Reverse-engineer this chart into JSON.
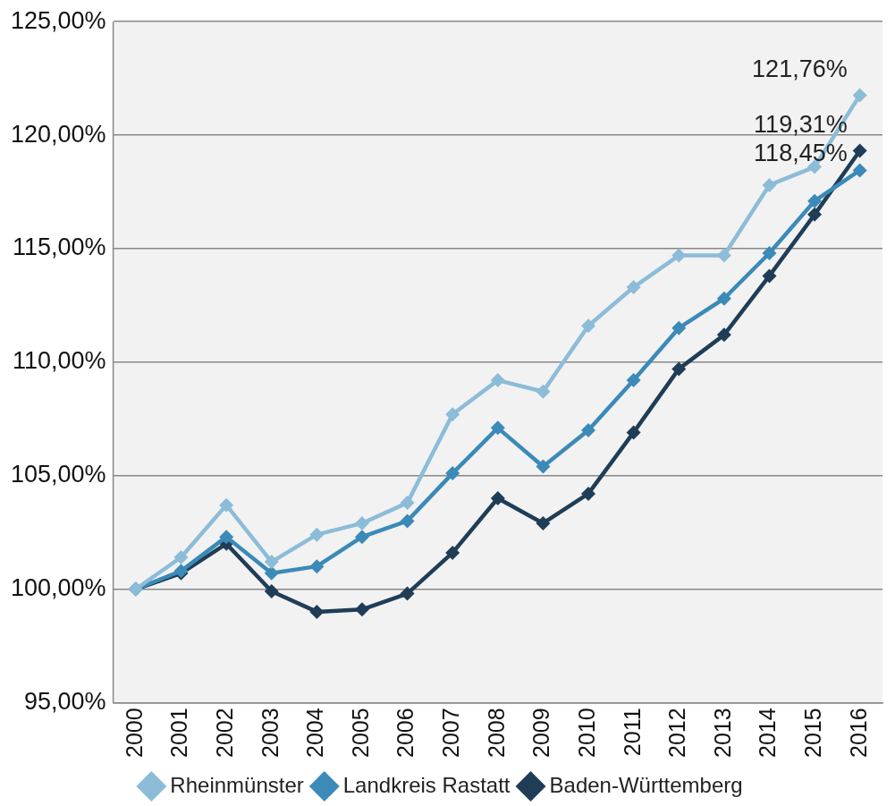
{
  "chart_data": {
    "type": "line",
    "categories": [
      "2000",
      "2001",
      "2002",
      "2003",
      "2004",
      "2005",
      "2006",
      "2007",
      "2008",
      "2009",
      "2010",
      "2011",
      "2012",
      "2013",
      "2014",
      "2015",
      "2016"
    ],
    "ylim": [
      95,
      125
    ],
    "yticks": [
      {
        "value": 95,
        "label": "95,00%"
      },
      {
        "value": 100,
        "label": "100,00%"
      },
      {
        "value": 105,
        "label": "105,00%"
      },
      {
        "value": 110,
        "label": "110,00%"
      },
      {
        "value": 115,
        "label": "115,00%"
      },
      {
        "value": 120,
        "label": "120,00%"
      },
      {
        "value": 125,
        "label": "125,00%"
      }
    ],
    "grid": "y",
    "legend": "bottom",
    "marker": "diamond",
    "line_style": "solid",
    "series": [
      {
        "name": "Rheinmünster",
        "color": "#8cbcd8",
        "values": [
          100,
          101.4,
          103.7,
          101.2,
          102.4,
          102.9,
          103.8,
          107.7,
          109.2,
          108.7,
          111.6,
          113.3,
          114.7,
          114.7,
          117.8,
          118.6,
          121.76
        ],
        "value_labels": [
          null,
          null,
          null,
          null,
          null,
          null,
          null,
          null,
          null,
          null,
          null,
          null,
          null,
          null,
          null,
          null,
          "121,76%"
        ]
      },
      {
        "name": "Landkreis Rastatt",
        "color": "#3b8ab8",
        "values": [
          100,
          100.8,
          102.3,
          100.7,
          101.0,
          102.3,
          103.0,
          105.1,
          107.1,
          105.4,
          107.0,
          109.2,
          111.5,
          112.8,
          114.8,
          117.1,
          118.45
        ],
        "value_labels": [
          null,
          null,
          null,
          null,
          null,
          null,
          null,
          null,
          null,
          null,
          null,
          null,
          null,
          null,
          null,
          null,
          "118,45%"
        ]
      },
      {
        "name": "Baden-Württemberg",
        "color": "#1f3d57",
        "values": [
          100,
          100.7,
          102.0,
          99.9,
          99.0,
          99.1,
          99.8,
          101.6,
          104.0,
          102.9,
          104.2,
          106.9,
          109.7,
          111.2,
          113.8,
          116.5,
          119.31
        ],
        "value_labels": [
          null,
          null,
          null,
          null,
          null,
          null,
          null,
          null,
          null,
          null,
          null,
          null,
          null,
          null,
          null,
          null,
          "119,31%"
        ]
      }
    ]
  }
}
